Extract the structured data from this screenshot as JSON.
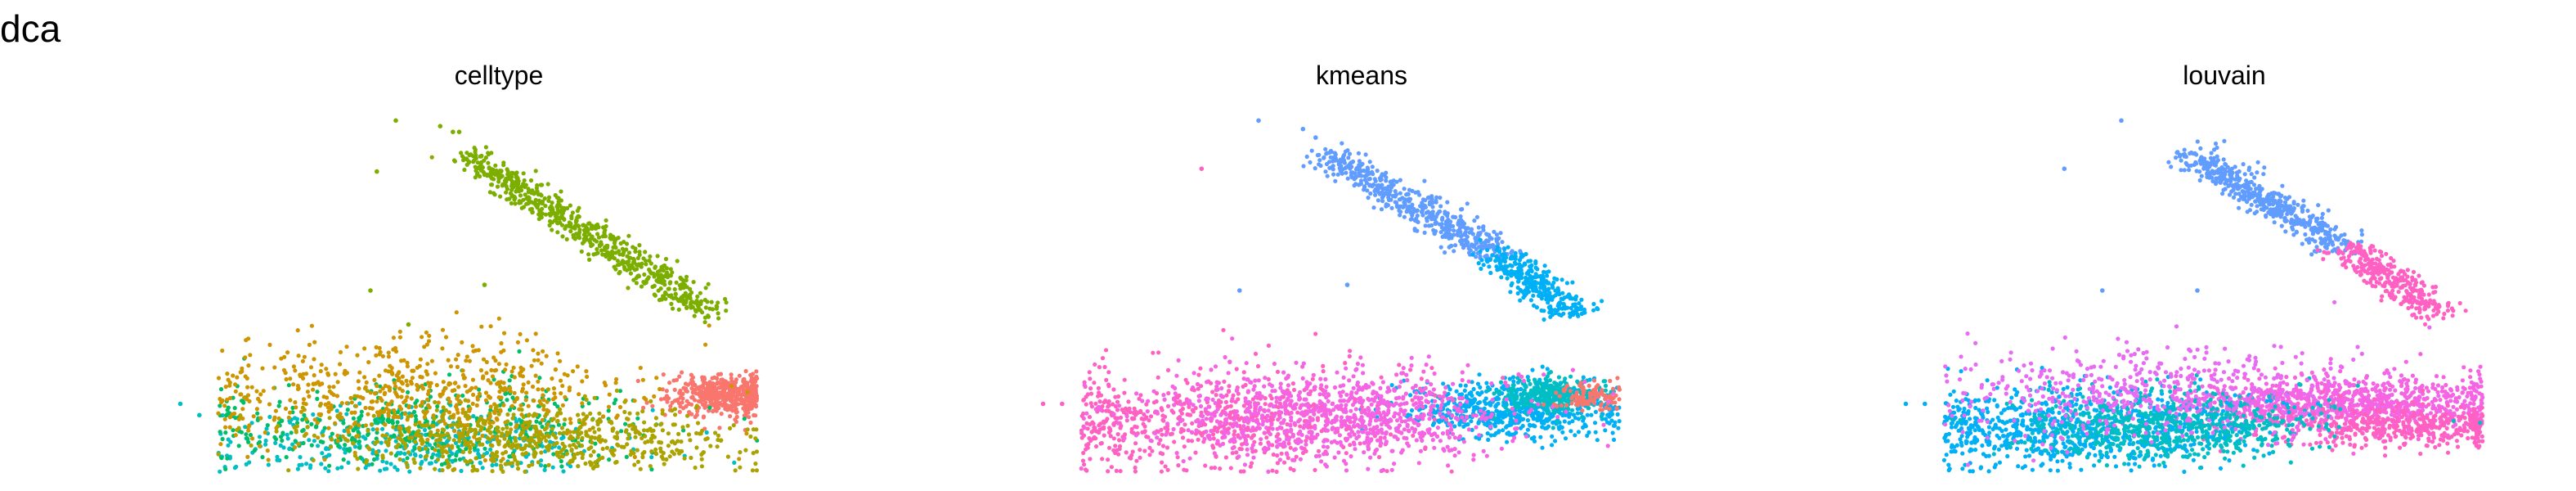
{
  "figure_title": "dca",
  "chart_data": [
    {
      "type": "scatter",
      "title": "celltype",
      "axes_visible": false,
      "grid": false,
      "legend": "none",
      "clusters": [
        {
          "color": "#F8766D",
          "n": 480,
          "cx": 0.88,
          "cy": 0.03,
          "sx": 0.045,
          "sy": 0.035
        },
        {
          "color": "#7CAE00",
          "n": 650,
          "x0": 0.47,
          "y0": 0.88,
          "x1": 0.86,
          "y1": 0.32,
          "spread": 0.035
        },
        {
          "color": "#00BFC4",
          "n": 350,
          "cx": 0.37,
          "cy": -0.14,
          "sx": 0.16,
          "sy": 0.06
        },
        {
          "color": "#00BE67",
          "n": 420,
          "cx": 0.4,
          "cy": -0.08,
          "sx": 0.2,
          "sy": 0.07
        },
        {
          "color": "#CD9600",
          "n": 650,
          "cx": 0.4,
          "cy": 0.03,
          "sx": 0.18,
          "sy": 0.1
        },
        {
          "color": "#ABA300",
          "n": 600,
          "cx": 0.58,
          "cy": -0.13,
          "sx": 0.16,
          "sy": 0.06
        }
      ],
      "outliers": [
        {
          "x": 0.05,
          "y": -0.04,
          "color": "#00BFC4"
        },
        {
          "x": 0.02,
          "y": 0.0,
          "color": "#00BFC4"
        },
        {
          "x": 0.36,
          "y": 1.0,
          "color": "#7CAE00"
        },
        {
          "x": 0.43,
          "y": 0.98,
          "color": "#7CAE00"
        },
        {
          "x": 0.45,
          "y": 0.96,
          "color": "#7CAE00"
        },
        {
          "x": 0.46,
          "y": 0.96,
          "color": "#7CAE00"
        },
        {
          "x": 0.33,
          "y": 0.82,
          "color": "#7CAE00"
        },
        {
          "x": 0.32,
          "y": 0.4,
          "color": "#7CAE00"
        },
        {
          "x": 0.38,
          "y": 0.28,
          "color": "#7CAE00"
        },
        {
          "x": 0.5,
          "y": 0.42,
          "color": "#7CAE00"
        },
        {
          "x": 0.18,
          "y": -0.06,
          "color": "#00BE67"
        },
        {
          "x": 0.23,
          "y": 0.07,
          "color": "#CD9600"
        }
      ]
    },
    {
      "type": "scatter",
      "title": "kmeans",
      "axes_visible": false,
      "grid": false,
      "legend": "none",
      "clusters": [
        {
          "color": "#619CFF",
          "n": 520,
          "x0": 0.47,
          "y0": 0.88,
          "x1": 0.74,
          "y1": 0.52,
          "spread": 0.035
        },
        {
          "color": "#00B0F6",
          "n": 330,
          "x0": 0.74,
          "y0": 0.52,
          "x1": 0.86,
          "y1": 0.32,
          "spread": 0.035
        },
        {
          "color": "#00B0F6",
          "n": 650,
          "cx": 0.76,
          "cy": -0.02,
          "sx": 0.09,
          "sy": 0.05
        },
        {
          "color": "#00BFC4",
          "n": 300,
          "cx": 0.82,
          "cy": 0.03,
          "sx": 0.04,
          "sy": 0.03
        },
        {
          "color": "#F8766D",
          "n": 100,
          "cx": 0.88,
          "cy": 0.03,
          "sx": 0.03,
          "sy": 0.025
        },
        {
          "color": "#FF61C3",
          "n": 650,
          "cx": 0.28,
          "cy": -0.06,
          "sx": 0.15,
          "sy": 0.09
        },
        {
          "color": "#F564E3",
          "n": 900,
          "cx": 0.48,
          "cy": -0.04,
          "sx": 0.14,
          "sy": 0.08
        }
      ],
      "outliers": [
        {
          "x": 0.05,
          "y": 0.0,
          "color": "#FF61C3"
        },
        {
          "x": 0.02,
          "y": 0.0,
          "color": "#FF61C3"
        },
        {
          "x": 0.36,
          "y": 1.0,
          "color": "#619CFF"
        },
        {
          "x": 0.43,
          "y": 0.97,
          "color": "#619CFF"
        },
        {
          "x": 0.45,
          "y": 0.94,
          "color": "#619CFF"
        },
        {
          "x": 0.27,
          "y": 0.83,
          "color": "#FF61C3"
        },
        {
          "x": 0.33,
          "y": 0.4,
          "color": "#619CFF"
        },
        {
          "x": 0.5,
          "y": 0.42,
          "color": "#619CFF"
        }
      ]
    },
    {
      "type": "scatter",
      "title": "louvain",
      "axes_visible": false,
      "grid": false,
      "legend": "none",
      "clusters": [
        {
          "color": "#619CFF",
          "n": 500,
          "x0": 0.47,
          "y0": 0.88,
          "x1": 0.71,
          "y1": 0.55,
          "spread": 0.035
        },
        {
          "color": "#FF61C3",
          "n": 300,
          "x0": 0.71,
          "y0": 0.55,
          "x1": 0.86,
          "y1": 0.32,
          "spread": 0.035
        },
        {
          "color": "#F564E3",
          "n": 1000,
          "cx": 0.7,
          "cy": 0.0,
          "sx": 0.14,
          "sy": 0.05
        },
        {
          "color": "#FF61C3",
          "n": 400,
          "cx": 0.8,
          "cy": -0.08,
          "sx": 0.1,
          "sy": 0.04
        },
        {
          "color": "#00B0F6",
          "n": 800,
          "cx": 0.28,
          "cy": -0.08,
          "sx": 0.14,
          "sy": 0.07
        },
        {
          "color": "#00BFC4",
          "n": 650,
          "cx": 0.44,
          "cy": -0.08,
          "sx": 0.12,
          "sy": 0.06
        },
        {
          "color": "#E76BF3",
          "n": 450,
          "cx": 0.4,
          "cy": 0.05,
          "sx": 0.16,
          "sy": 0.08
        }
      ],
      "outliers": [
        {
          "x": 0.05,
          "y": 0.0,
          "color": "#00B0F6"
        },
        {
          "x": 0.02,
          "y": 0.0,
          "color": "#00B0F6"
        },
        {
          "x": 0.36,
          "y": 1.0,
          "color": "#619CFF"
        },
        {
          "x": 0.27,
          "y": 0.83,
          "color": "#619CFF"
        },
        {
          "x": 0.33,
          "y": 0.4,
          "color": "#619CFF"
        },
        {
          "x": 0.48,
          "y": 0.4,
          "color": "#619CFF"
        }
      ]
    }
  ]
}
